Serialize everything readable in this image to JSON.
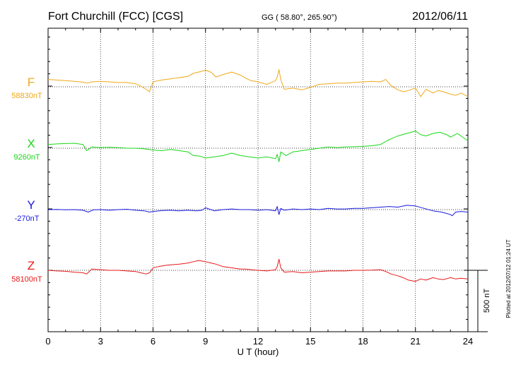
{
  "header": {
    "station": "Fort Churchill (FCC)  [CGS]",
    "coords": "GG ( 58.80°, 265.90°)",
    "date": "2012/06/11"
  },
  "chart_data": {
    "type": "line",
    "xlabel": "U T (hour)",
    "xlim": [
      0,
      24
    ],
    "xticks": [
      "0",
      "3",
      "6",
      "9",
      "12",
      "15",
      "18",
      "21",
      "24"
    ],
    "scale_label": "500 nT",
    "scale_nT": 500,
    "grid": true,
    "plotted_note": "Plotted at 2012/07/12 01:24  UT",
    "series": [
      {
        "name": "F",
        "baseline_label": "58830nT",
        "color": "#f0a818",
        "baseline_nT": 58830,
        "x": [
          0,
          0.5,
          1,
          1.5,
          2,
          2.2,
          2.5,
          3,
          3.5,
          4,
          4.5,
          5,
          5.3,
          5.6,
          5.8,
          6,
          6.3,
          6.7,
          7,
          7.5,
          8,
          8.3,
          8.6,
          9,
          9.3,
          9.6,
          10,
          10.5,
          11,
          11.3,
          11.6,
          12,
          12.5,
          13,
          13.1,
          13.2,
          13.3,
          13.5,
          14,
          14.5,
          15,
          15.5,
          16,
          16.5,
          17,
          17.5,
          18,
          18.5,
          19,
          19.3,
          19.6,
          20,
          20.3,
          20.6,
          21,
          21.3,
          21.6,
          22,
          22.3,
          22.6,
          23,
          23.3,
          23.6,
          24
        ],
        "values": [
          60,
          55,
          50,
          45,
          38,
          30,
          40,
          45,
          40,
          35,
          35,
          25,
          5,
          -20,
          -40,
          40,
          50,
          60,
          65,
          75,
          85,
          110,
          120,
          135,
          120,
          80,
          100,
          120,
          95,
          70,
          50,
          40,
          20,
          50,
          80,
          140,
          60,
          -20,
          -10,
          -25,
          -5,
          20,
          25,
          30,
          30,
          35,
          40,
          45,
          40,
          60,
          10,
          -25,
          -40,
          -30,
          -10,
          -80,
          -20,
          -50,
          -30,
          -40,
          -60,
          -70,
          -50,
          -80
        ]
      },
      {
        "name": "X",
        "baseline_label": "9260nT",
        "color": "#18d818",
        "baseline_nT": 9260,
        "x": [
          0,
          0.5,
          1,
          1.5,
          2,
          2.2,
          2.5,
          3,
          3.5,
          4,
          4.5,
          5,
          5.5,
          6,
          6.5,
          7,
          7.5,
          8,
          8.3,
          8.7,
          9,
          9.5,
          10,
          10.5,
          11,
          11.5,
          12,
          12.5,
          13,
          13.1,
          13.2,
          13.3,
          13.6,
          14,
          14.5,
          15,
          15.5,
          16,
          16.5,
          17,
          17.5,
          18,
          18.5,
          19,
          19.5,
          20,
          20.5,
          21,
          21.3,
          21.6,
          22,
          22.4,
          22.8,
          23,
          23.4,
          23.8,
          24
        ],
        "values": [
          30,
          35,
          38,
          40,
          30,
          -20,
          10,
          5,
          8,
          5,
          0,
          0,
          -5,
          -15,
          -20,
          -10,
          -20,
          -30,
          -60,
          -65,
          -80,
          -70,
          -60,
          -40,
          -60,
          -70,
          -80,
          -70,
          -85,
          -50,
          -110,
          -30,
          -60,
          -30,
          -20,
          -10,
          0,
          10,
          5,
          10,
          12,
          15,
          20,
          30,
          70,
          100,
          120,
          140,
          110,
          100,
          120,
          130,
          110,
          90,
          120,
          80,
          60
        ]
      },
      {
        "name": "Y",
        "baseline_label": "-270nT",
        "color": "#1818e0",
        "baseline_nT": -270,
        "x": [
          0,
          0.5,
          1,
          1.5,
          2,
          2.3,
          2.6,
          3,
          3.5,
          4,
          4.5,
          5,
          5.5,
          5.8,
          6,
          6.5,
          7,
          7.5,
          8,
          8.5,
          8.8,
          9,
          9.5,
          10,
          10.5,
          11,
          11.5,
          12,
          12.5,
          13,
          13.1,
          13.2,
          13.3,
          13.5,
          14,
          14.5,
          15,
          15.5,
          16,
          16.5,
          17,
          17.5,
          18,
          18.5,
          19,
          19.5,
          20,
          20.5,
          21,
          21.5,
          22,
          22.5,
          23,
          23.1,
          23.3,
          23.6,
          24
        ],
        "values": [
          0,
          2,
          -2,
          0,
          -5,
          -20,
          -2,
          0,
          -5,
          0,
          3,
          -5,
          -10,
          -20,
          -15,
          -8,
          -5,
          -10,
          -5,
          -10,
          -5,
          15,
          -10,
          0,
          5,
          0,
          0,
          -5,
          0,
          -10,
          25,
          -40,
          10,
          -5,
          5,
          0,
          5,
          0,
          10,
          5,
          5,
          10,
          10,
          15,
          20,
          25,
          20,
          35,
          30,
          10,
          -10,
          -20,
          -40,
          -50,
          -20,
          -15,
          -20
        ]
      },
      {
        "name": "Z",
        "baseline_label": "58100nT",
        "color": "#e81818",
        "baseline_nT": 58100,
        "x": [
          0,
          0.5,
          1,
          1.5,
          2,
          2.2,
          2.5,
          3,
          3.5,
          4,
          4.5,
          5,
          5.3,
          5.6,
          5.8,
          6,
          6.3,
          6.7,
          7,
          7.5,
          8,
          8.3,
          8.6,
          9,
          9.3,
          9.6,
          10,
          10.5,
          11,
          11.3,
          11.6,
          12,
          12.5,
          13,
          13.1,
          13.2,
          13.3,
          13.5,
          14,
          14.5,
          15,
          15.5,
          16,
          16.5,
          17,
          17.5,
          18,
          18.5,
          19,
          19.3,
          19.6,
          20,
          20.3,
          20.6,
          21,
          21.3,
          21.6,
          22,
          22.3,
          22.6,
          23,
          23.3,
          23.6,
          24
        ],
        "values": [
          0,
          -5,
          -8,
          -15,
          -20,
          -30,
          10,
          5,
          0,
          0,
          -5,
          -10,
          -20,
          -30,
          -20,
          20,
          30,
          40,
          45,
          50,
          60,
          70,
          80,
          70,
          60,
          50,
          30,
          20,
          10,
          10,
          5,
          0,
          -5,
          5,
          30,
          90,
          20,
          -15,
          -10,
          -20,
          -15,
          -10,
          -5,
          -5,
          -5,
          0,
          0,
          2,
          5,
          -10,
          -30,
          -45,
          -60,
          -80,
          -90,
          -70,
          -80,
          -60,
          -70,
          -75,
          -60,
          -70,
          -65,
          -70
        ]
      }
    ]
  }
}
